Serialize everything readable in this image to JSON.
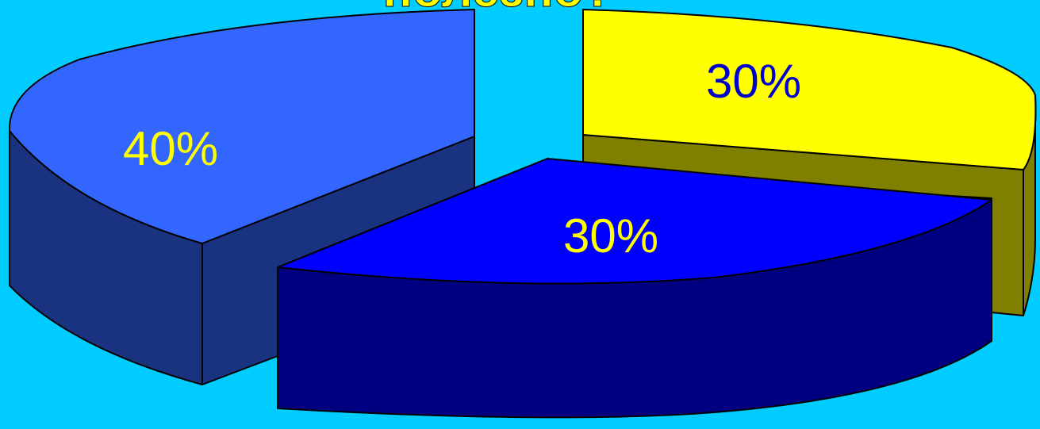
{
  "chart_data": {
    "type": "pie",
    "title": "полезно?",
    "slices": [
      {
        "label": "40%",
        "value": 40,
        "top_color": "#3366FF",
        "side_color": "#1A3380",
        "label_color": "#FFFF00"
      },
      {
        "label": "30%",
        "value": 30,
        "top_color": "#FFFF00",
        "side_color": "#808000",
        "label_color": "#0000CC"
      },
      {
        "label": "30%",
        "value": 30,
        "top_color": "#0000FF",
        "side_color": "#000080",
        "label_color": "#FFFF00"
      }
    ]
  },
  "colors": {
    "background": "#00CCFF",
    "title": "#FFFF00",
    "outline": "#000000"
  }
}
